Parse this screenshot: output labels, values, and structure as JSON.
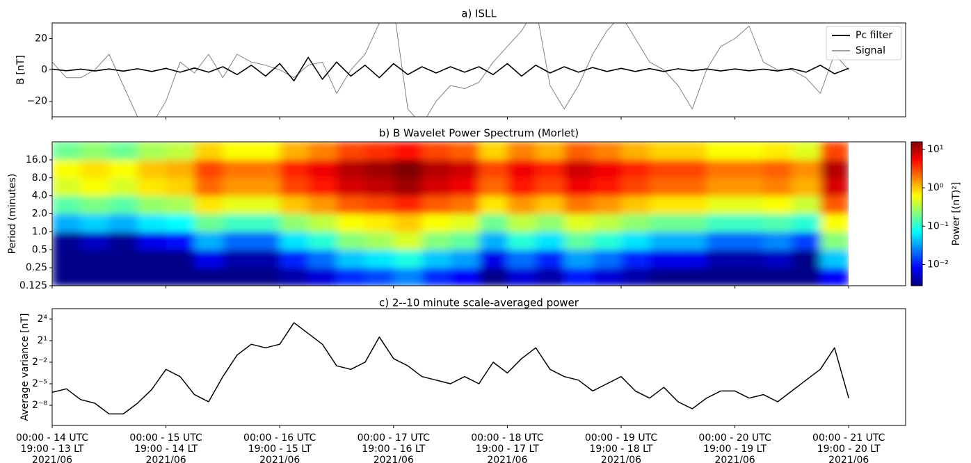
{
  "chart_data": [
    {
      "type": "line",
      "title": "a) ISLL",
      "ylabel": "B [nT]",
      "xlim": [
        0,
        7.5
      ],
      "xticks": [
        0,
        1,
        2,
        3,
        4,
        5,
        6,
        7
      ],
      "ylim": [
        -30,
        30
      ],
      "yticks": [
        {
          "value": -20,
          "label": "−20"
        },
        0,
        20
      ],
      "legend": "upper right",
      "x": [
        0,
        0.125,
        0.25,
        0.375,
        0.5,
        0.625,
        0.75,
        0.875,
        1,
        1.125,
        1.25,
        1.375,
        1.5,
        1.625,
        1.75,
        1.875,
        2,
        2.125,
        2.25,
        2.375,
        2.5,
        2.625,
        2.75,
        2.875,
        3,
        3.125,
        3.25,
        3.375,
        3.5,
        3.625,
        3.75,
        3.875,
        4,
        4.125,
        4.25,
        4.375,
        4.5,
        4.625,
        4.75,
        4.875,
        5,
        5.125,
        5.25,
        5.375,
        5.5,
        5.625,
        5.75,
        5.875,
        6,
        6.125,
        6.25,
        6.375,
        6.5,
        6.625,
        6.75,
        6.875,
        7
      ],
      "series": [
        {
          "name": "Pc filter",
          "color": "#000000",
          "width": 1.6,
          "values": [
            0.5,
            -0.6,
            0.5,
            -0.7,
            0.6,
            -0.8,
            0.7,
            -1,
            1,
            -1.5,
            1.2,
            -1.5,
            2,
            -3,
            3,
            -4,
            4,
            -7,
            8,
            -6,
            5,
            -4,
            3,
            -5,
            4,
            -3,
            2,
            -2,
            2,
            -1.5,
            2,
            -3,
            4,
            -4,
            3,
            -2,
            2,
            -1.5,
            1.5,
            -1,
            1,
            -1,
            0.8,
            -1,
            0.7,
            -0.6,
            0.6,
            -0.7,
            0.6,
            -0.6,
            0.5,
            -0.7,
            0.8,
            -1.5,
            3,
            -2.5,
            1
          ]
        },
        {
          "name": "Signal",
          "color": "#808080",
          "width": 1,
          "values": [
            5,
            -5,
            -5,
            0,
            10,
            -10,
            -30,
            -35,
            -20,
            5,
            -2,
            10,
            -5,
            10,
            5,
            3,
            0,
            -5,
            3,
            5,
            -15,
            0,
            10,
            30,
            40,
            -25,
            -35,
            -20,
            -10,
            -12,
            -8,
            5,
            15,
            25,
            40,
            -10,
            -25,
            -10,
            10,
            25,
            35,
            20,
            5,
            0,
            -10,
            -25,
            0,
            15,
            20,
            28,
            5,
            0,
            0,
            -5,
            -15,
            10,
            0
          ]
        }
      ]
    },
    {
      "type": "heatmap",
      "title": "b) B Wavelet Power Spectrum (Morlet)",
      "ylabel": "Period (minutes)",
      "xlim": [
        0,
        7.5
      ],
      "xticks": [
        0,
        1,
        2,
        3,
        4,
        5,
        6,
        7
      ],
      "log": true,
      "ylim": [
        0.125,
        32
      ],
      "yticks": [
        0.125,
        0.25,
        0.5,
        {
          "value": 1,
          "label": "1.0"
        },
        {
          "value": 2,
          "label": "2.0"
        },
        {
          "value": 4,
          "label": "4.0"
        },
        {
          "value": 8,
          "label": "8.0"
        },
        {
          "value": 16,
          "label": "16.0"
        }
      ],
      "x_edges": [
        0,
        0.25,
        0.5,
        0.75,
        1,
        1.25,
        1.5,
        1.75,
        2,
        2.25,
        2.5,
        2.75,
        3,
        3.25,
        3.5,
        3.75,
        4,
        4.25,
        4.5,
        4.75,
        5,
        5.25,
        5.5,
        5.75,
        6,
        6.25,
        6.5,
        6.75,
        7
      ],
      "y_edges": [
        0.125,
        0.25,
        0.5,
        1,
        2,
        4,
        8,
        16,
        32
      ],
      "z": [
        [
          0.003,
          0.003,
          0.003,
          0.003,
          0.003,
          0.003,
          0.003,
          0.003,
          0.004,
          0.006,
          0.012,
          0.015,
          0.025,
          0.012,
          0.008,
          0.003,
          0.006,
          0.004,
          0.01,
          0.006,
          0.004,
          0.003,
          0.003,
          0.003,
          0.003,
          0.003,
          0.003,
          0.008
        ],
        [
          0.003,
          0.003,
          0.003,
          0.003,
          0.003,
          0.007,
          0.004,
          0.004,
          0.011,
          0.021,
          0.045,
          0.059,
          0.09,
          0.045,
          0.032,
          0.007,
          0.021,
          0.011,
          0.032,
          0.021,
          0.011,
          0.007,
          0.007,
          0.004,
          0.004,
          0.005,
          0.003,
          0.045
        ],
        [
          0.0033,
          0.005,
          0.0033,
          0.007,
          0.009,
          0.037,
          0.02,
          0.02,
          0.057,
          0.1,
          0.22,
          0.29,
          0.45,
          0.22,
          0.16,
          0.037,
          0.1,
          0.057,
          0.16,
          0.1,
          0.057,
          0.037,
          0.037,
          0.02,
          0.02,
          0.026,
          0.014,
          0.22
        ],
        [
          0.036,
          0.048,
          0.036,
          0.06,
          0.072,
          0.18,
          0.12,
          0.12,
          0.24,
          0.36,
          0.6,
          0.72,
          0.96,
          0.6,
          0.48,
          0.18,
          0.36,
          0.24,
          0.48,
          0.36,
          0.24,
          0.18,
          0.18,
          0.12,
          0.12,
          0.14,
          0.1,
          0.6
        ],
        [
          0.15,
          0.2,
          0.15,
          0.25,
          0.3,
          0.75,
          0.5,
          0.5,
          1,
          1.5,
          2.5,
          3,
          4,
          2.5,
          2,
          0.75,
          1.5,
          1,
          2,
          1.5,
          1,
          0.75,
          0.75,
          0.5,
          0.5,
          0.6,
          0.4,
          2.5
        ],
        [
          0.45,
          0.6,
          0.45,
          0.75,
          0.9,
          2.25,
          1.5,
          1.5,
          3,
          4.5,
          7.5,
          9,
          12,
          7.5,
          6,
          2.25,
          4.5,
          3,
          6,
          4.5,
          3,
          2.25,
          2.25,
          1.5,
          1.5,
          1.8,
          1.2,
          7.5
        ],
        [
          0.6,
          0.8,
          0.6,
          1,
          1.2,
          3,
          2,
          2,
          4,
          6,
          10,
          12,
          16,
          10,
          8,
          3,
          6,
          4,
          8,
          6,
          4,
          3,
          3,
          2,
          2,
          2.4,
          1.6,
          10
        ],
        [
          0.18,
          0.24,
          0.18,
          0.3,
          0.36,
          0.9,
          0.6,
          0.6,
          1.2,
          1.8,
          3,
          3.6,
          4.8,
          3,
          2.4,
          0.9,
          1.8,
          1.2,
          2.4,
          1.8,
          1.2,
          0.9,
          0.9,
          0.6,
          0.6,
          0.72,
          0.48,
          3
        ]
      ],
      "colorbar": {
        "label": "Power [(nT)²]",
        "log": true,
        "lim": [
          0.0028,
          15.8
        ],
        "ticks": [
          {
            "value": 0.01,
            "label": "10⁻²"
          },
          {
            "value": 0.1,
            "label": "10⁻¹"
          },
          {
            "value": 1,
            "label": "10⁰"
          },
          {
            "value": 10,
            "label": "10¹"
          }
        ]
      }
    },
    {
      "type": "line",
      "title": "c) 2--10 minute scale-averaged power",
      "ylabel": "Average variance [nT]",
      "xlim": [
        0,
        7.5
      ],
      "xticks": [
        {
          "value": 0,
          "label": "00:00 - 14 UTC\n19:00 - 13 LT\n2021/06"
        },
        {
          "value": 1,
          "label": "00:00 - 15 UTC\n19:00 - 14 LT\n2021/06"
        },
        {
          "value": 2,
          "label": "00:00 - 16 UTC\n19:00 - 15 LT\n2021/06"
        },
        {
          "value": 3,
          "label": "00:00 - 17 UTC\n19:00 - 16 LT\n2021/06"
        },
        {
          "value": 4,
          "label": "00:00 - 18 UTC\n19:00 - 17 LT\n2021/06"
        },
        {
          "value": 5,
          "label": "00:00 - 19 UTC\n19:00 - 18 LT\n2021/06"
        },
        {
          "value": 6,
          "label": "00:00 - 20 UTC\n19:00 - 19 LT\n2021/06"
        },
        {
          "value": 7,
          "label": "00:00 - 21 UTC\n19:00 - 20 LT\n2021/06"
        }
      ],
      "log": true,
      "ylim": [
        0.00056,
        43.7
      ],
      "yticks": [
        {
          "value": 0.00390625,
          "label": "2⁻⁸"
        },
        {
          "value": 0.03125,
          "label": "2⁻⁵"
        },
        {
          "value": 0.25,
          "label": "2⁻²"
        },
        {
          "value": 2,
          "label": "2¹"
        },
        {
          "value": 16,
          "label": "2⁴"
        }
      ],
      "x": [
        0,
        0.125,
        0.25,
        0.375,
        0.5,
        0.625,
        0.75,
        0.875,
        1,
        1.125,
        1.25,
        1.375,
        1.5,
        1.625,
        1.75,
        1.875,
        2,
        2.125,
        2.25,
        2.375,
        2.5,
        2.625,
        2.75,
        2.875,
        3,
        3.125,
        3.25,
        3.375,
        3.5,
        3.625,
        3.75,
        3.875,
        4,
        4.125,
        4.25,
        4.375,
        4.5,
        4.625,
        4.75,
        4.875,
        5,
        5.125,
        5.25,
        5.375,
        5.5,
        5.625,
        5.75,
        5.875,
        6,
        6.125,
        6.25,
        6.375,
        6.5,
        6.625,
        6.75,
        6.875,
        7
      ],
      "series": [
        {
          "color": "#000000",
          "width": 1.5,
          "values": [
            0.0136,
            0.0192,
            0.0068,
            0.0048,
            0.0017,
            0.0017,
            0.0048,
            0.018,
            0.125,
            0.0625,
            0.011,
            0.0055,
            0.0625,
            0.5,
            1.41,
            1,
            1.41,
            11.3,
            4,
            1.41,
            0.177,
            0.125,
            0.25,
            2.83,
            0.354,
            0.177,
            0.0625,
            0.0442,
            0.03125,
            0.0625,
            0.03125,
            0.25,
            0.0884,
            0.354,
            1,
            0.125,
            0.0625,
            0.0442,
            0.0156,
            0.03125,
            0.0625,
            0.0156,
            0.0078,
            0.0221,
            0.0055,
            0.0028,
            0.0078,
            0.0156,
            0.0156,
            0.0078,
            0.011,
            0.0055,
            0.0156,
            0.0442,
            0.125,
            1,
            0.0078
          ]
        }
      ]
    }
  ]
}
